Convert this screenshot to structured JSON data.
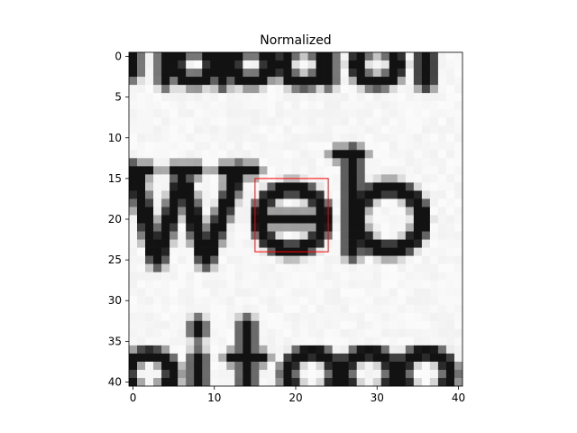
{
  "chart_data": {
    "type": "heatmap",
    "title": "Normalized",
    "xlabel": "",
    "ylabel": "",
    "colormap": "gray",
    "image_size": [
      41,
      41
    ],
    "xlim": [
      -0.5,
      40.5
    ],
    "ylim": [
      40.5,
      -0.5
    ],
    "xticks": [
      0,
      10,
      20,
      30,
      40
    ],
    "yticks": [
      0,
      5,
      10,
      15,
      20,
      25,
      30,
      35,
      40
    ],
    "depicted_text": [
      "Web"
    ],
    "annotations": [
      {
        "type": "rectangle",
        "x": [
          15,
          24
        ],
        "y": [
          15,
          24
        ],
        "color": "#ff0000"
      }
    ]
  }
}
